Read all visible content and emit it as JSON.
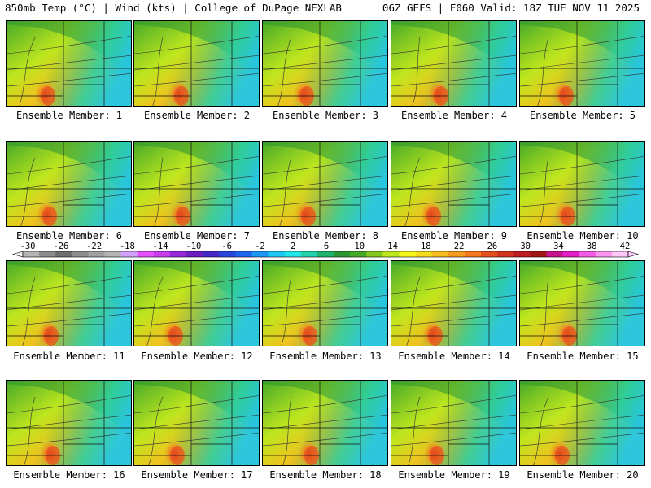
{
  "header": {
    "left": "850mb Temp (°C) | Wind (kts) | College of DuPage NEXLAB",
    "right": "06Z GEFS | F060 Valid: 18Z TUE NOV 11 2025"
  },
  "members": [
    {
      "label": "Ensemble Member: 1"
    },
    {
      "label": "Ensemble Member: 2"
    },
    {
      "label": "Ensemble Member: 3"
    },
    {
      "label": "Ensemble Member: 4"
    },
    {
      "label": "Ensemble Member: 5"
    },
    {
      "label": "Ensemble Member: 6"
    },
    {
      "label": "Ensemble Member: 7"
    },
    {
      "label": "Ensemble Member: 8"
    },
    {
      "label": "Ensemble Member: 9"
    },
    {
      "label": "Ensemble Member: 10"
    },
    {
      "label": "Ensemble Member: 11"
    },
    {
      "label": "Ensemble Member: 12"
    },
    {
      "label": "Ensemble Member: 13"
    },
    {
      "label": "Ensemble Member: 14"
    },
    {
      "label": "Ensemble Member: 15"
    },
    {
      "label": "Ensemble Member: 16"
    },
    {
      "label": "Ensemble Member: 17"
    },
    {
      "label": "Ensemble Member: 18"
    },
    {
      "label": "Ensemble Member: 19"
    },
    {
      "label": "Ensemble Member: 20"
    }
  ],
  "colorbar": {
    "ticks": [
      "-30",
      "-26",
      "-22",
      "-18",
      "-14",
      "-10",
      "-6",
      "-2",
      "2",
      "6",
      "10",
      "14",
      "18",
      "22",
      "26",
      "30",
      "34",
      "38",
      "42"
    ],
    "colors": [
      "#b4b4b4",
      "#8c8c8c",
      "#6e6e6e",
      "#8c8c8c",
      "#a0a0a0",
      "#b4b4b4",
      "#d2a0ff",
      "#e650ff",
      "#c83cf0",
      "#9628dc",
      "#6e1ebe",
      "#4628c8",
      "#2846dc",
      "#1e64f0",
      "#1e96f5",
      "#1ec8f5",
      "#23e6e6",
      "#23d2aa",
      "#1eb46e",
      "#2d9632",
      "#46aa28",
      "#82c81e",
      "#bee61e",
      "#f5f51e",
      "#f5dc1e",
      "#f5be1e",
      "#f59b1e",
      "#f5781e",
      "#e6501e",
      "#d2321e",
      "#be1e1e",
      "#a01414",
      "#c8148c",
      "#e61ec8",
      "#f55ae6",
      "#fa96f0",
      "#ffc8fa"
    ]
  }
}
